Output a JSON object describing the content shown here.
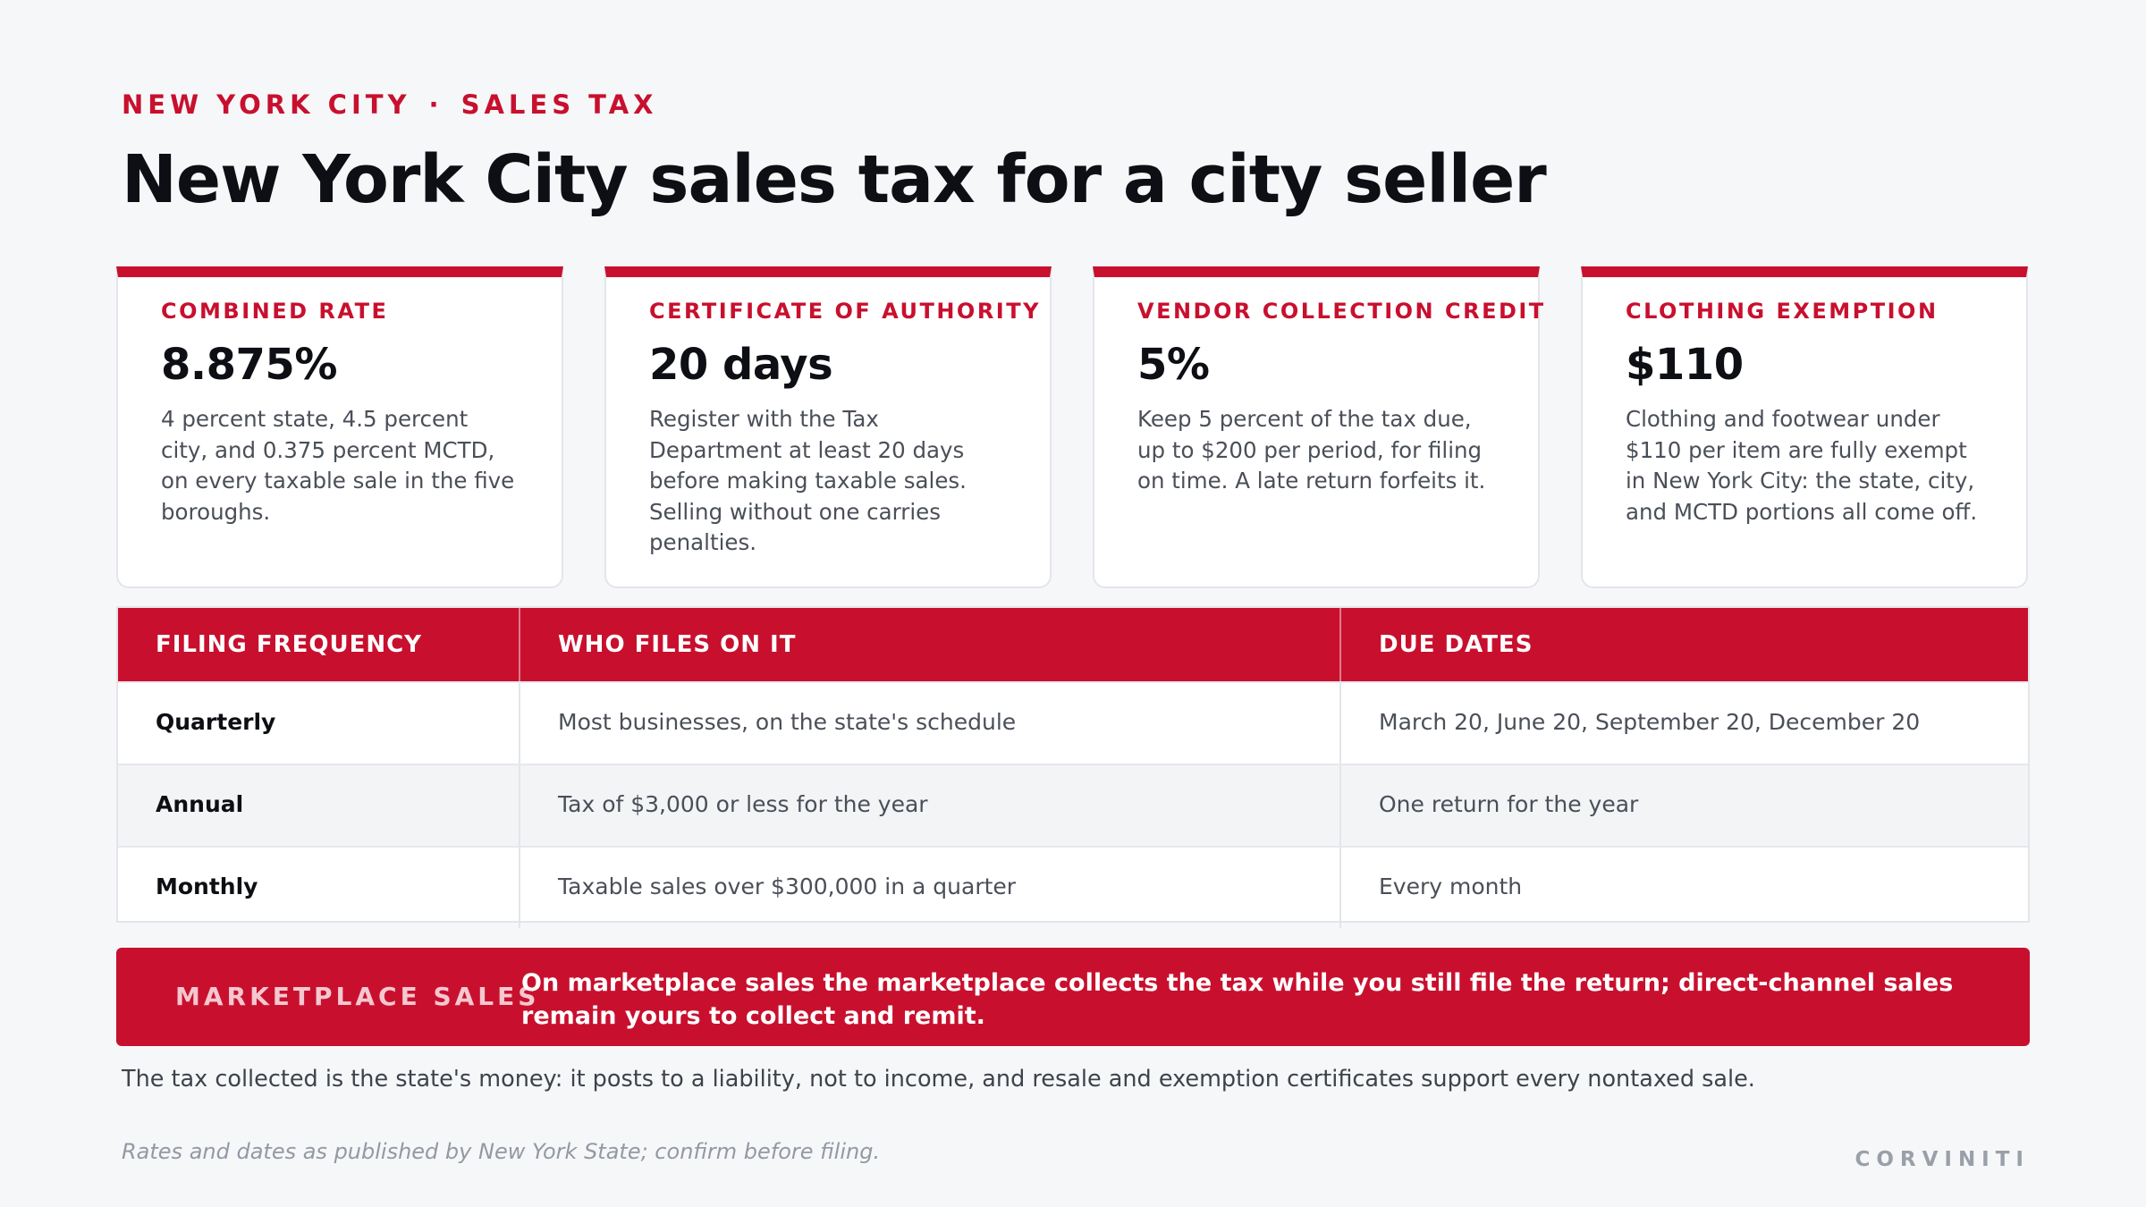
{
  "eyebrow": {
    "left": "NEW YORK CITY",
    "separator": "·",
    "right": "SALES TAX"
  },
  "title": "New York City sales tax for a city seller",
  "cards": [
    {
      "label": "COMBINED RATE",
      "value": "8.875%",
      "body": "4 percent state, 4.5 percent city, and 0.375 percent MCTD, on every taxable sale in the five boroughs."
    },
    {
      "label": "CERTIFICATE OF AUTHORITY",
      "value": "20 days",
      "body": "Register with the Tax Department at least 20 days before making taxable sales. Selling without one carries penalties."
    },
    {
      "label": "VENDOR COLLECTION CREDIT",
      "value": "5%",
      "body": "Keep 5 percent of the tax due, up to $200 per period, for filing on time. A late return forfeits it."
    },
    {
      "label": "CLOTHING EXEMPTION",
      "value": "$110",
      "body": "Clothing and footwear under $110 per item are fully exempt in New York City: the state, city, and MCTD portions all come off."
    }
  ],
  "table": {
    "headers": [
      "FILING FREQUENCY",
      "WHO FILES ON IT",
      "DUE DATES"
    ],
    "rows": [
      [
        "Quarterly",
        "Most businesses, on the state's schedule",
        "March 20, June 20, September 20, December 20"
      ],
      [
        "Annual",
        "Tax of $3,000 or less for the year",
        "One return for the year"
      ],
      [
        "Monthly",
        "Taxable sales over $300,000 in a quarter",
        "Every month"
      ]
    ]
  },
  "callout": {
    "label": "MARKETPLACE SALES",
    "text": "On marketplace sales the marketplace collects the tax while you still file the return; direct-channel sales remain yours to collect and remit."
  },
  "note": "The tax collected is the state's money: it posts to a liability, not to income, and resale and exemption certificates support every nontaxed sale.",
  "footnote": "Rates and dates as published by New York State; confirm before filing.",
  "brand": "CORVINITI",
  "colors": {
    "accent": "#c8102e",
    "background": "#f6f7f9"
  }
}
